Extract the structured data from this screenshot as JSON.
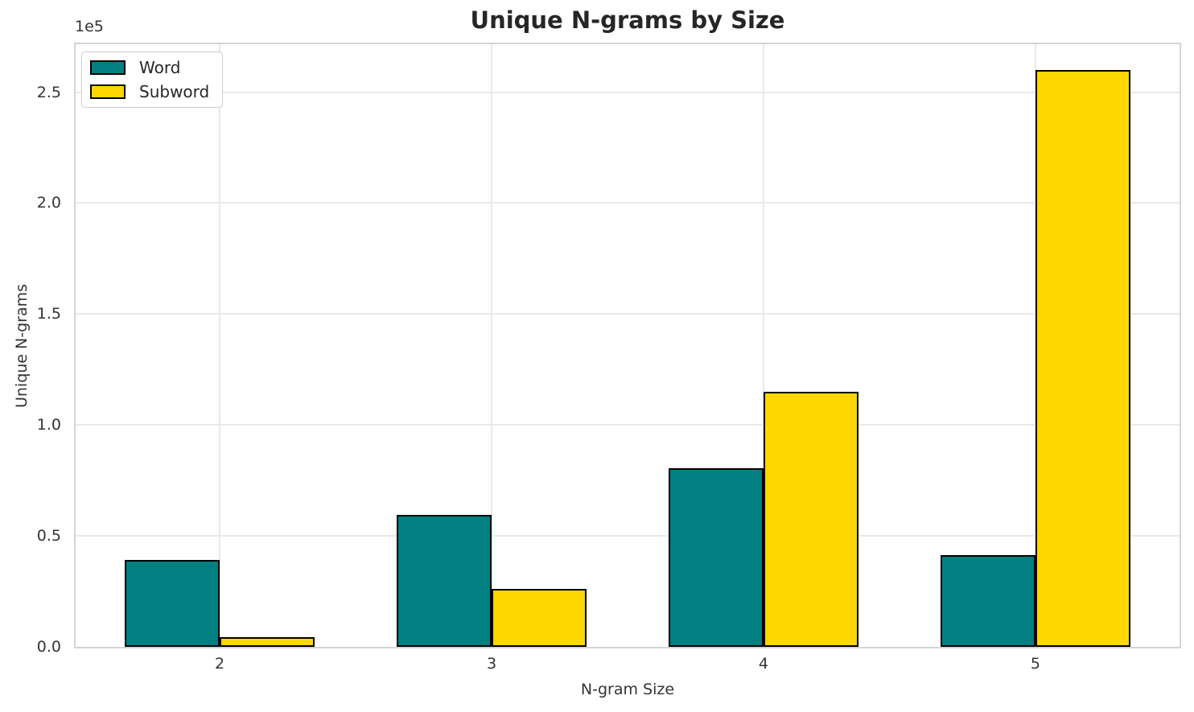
{
  "chart_data": {
    "type": "bar",
    "title": "Unique N-grams by Size",
    "xlabel": "N-gram Size",
    "ylabel": "Unique N-grams",
    "y_offset_label": "1e5",
    "categories": [
      "2",
      "3",
      "4",
      "5"
    ],
    "series": [
      {
        "name": "Word",
        "color": "#008080",
        "values": [
          39000,
          59500,
          80500,
          41500
        ]
      },
      {
        "name": "Subword",
        "color": "#FFD700",
        "values": [
          4300,
          26000,
          115000,
          260000
        ]
      }
    ],
    "y_ticks": [
      0,
      50000,
      100000,
      150000,
      200000,
      250000
    ],
    "y_tick_labels": [
      "0.0",
      "0.5",
      "1.0",
      "1.5",
      "2.0",
      "2.5"
    ],
    "ylim": [
      0,
      271600
    ],
    "grid": true,
    "legend_position": "upper left",
    "bar_edge_color": "#000000",
    "bar_width_fraction": 0.35,
    "x_pad_units": 0.53
  }
}
